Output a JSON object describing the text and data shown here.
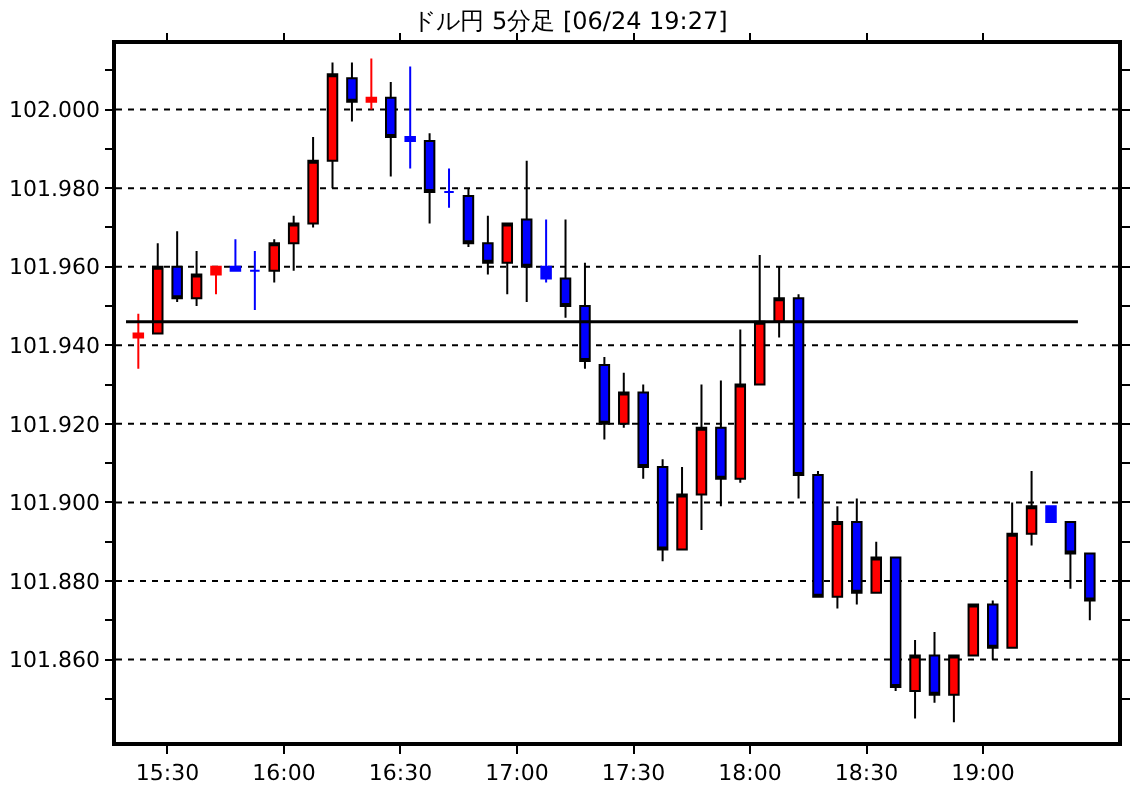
{
  "chart_data": {
    "type": "candlestick",
    "title": "ドル円 5分足 [06/24 19:27]",
    "x": [
      15.375,
      15.4583,
      15.5417,
      15.625,
      15.7083,
      15.7917,
      15.875,
      15.9583,
      16.0417,
      16.125,
      16.2083,
      16.2917,
      16.375,
      16.4583,
      16.5417,
      16.625,
      16.7083,
      16.7917,
      16.875,
      16.9583,
      17.0417,
      17.125,
      17.2083,
      17.2917,
      17.375,
      17.4583,
      17.5417,
      17.625,
      17.7083,
      17.7917,
      17.875,
      17.9583,
      18.0417,
      18.125,
      18.2083,
      18.2917,
      18.375,
      18.4583,
      18.5417,
      18.625,
      18.7083,
      18.7917,
      18.875,
      18.9583,
      19.0417,
      19.125,
      19.2083,
      19.2917,
      19.375,
      19.4583
    ],
    "ohlc": [
      [
        101.942,
        101.948,
        101.934,
        101.943
      ],
      [
        101.943,
        101.966,
        101.943,
        101.96
      ],
      [
        101.96,
        101.969,
        101.951,
        101.952
      ],
      [
        101.952,
        101.964,
        101.95,
        101.958
      ],
      [
        101.958,
        101.96,
        101.953,
        101.96
      ],
      [
        101.96,
        101.967,
        101.959,
        101.959
      ],
      [
        101.959,
        101.964,
        101.949,
        101.959
      ],
      [
        101.959,
        101.967,
        101.956,
        101.966
      ],
      [
        101.966,
        101.973,
        101.959,
        101.971
      ],
      [
        101.971,
        101.993,
        101.97,
        101.987
      ],
      [
        101.987,
        102.012,
        101.98,
        102.009
      ],
      [
        102.008,
        102.012,
        101.997,
        102.002
      ],
      [
        102.002,
        102.013,
        102.0,
        102.003
      ],
      [
        102.003,
        102.007,
        101.983,
        101.993
      ],
      [
        101.993,
        102.011,
        101.985,
        101.992
      ],
      [
        101.992,
        101.994,
        101.971,
        101.979
      ],
      [
        101.979,
        101.985,
        101.975,
        101.979
      ],
      [
        101.978,
        101.98,
        101.965,
        101.966
      ],
      [
        101.966,
        101.973,
        101.958,
        101.961
      ],
      [
        101.961,
        101.971,
        101.953,
        101.971
      ],
      [
        101.972,
        101.987,
        101.951,
        101.96
      ],
      [
        101.96,
        101.972,
        101.956,
        101.957
      ],
      [
        101.957,
        101.972,
        101.947,
        101.95
      ],
      [
        101.95,
        101.961,
        101.934,
        101.936
      ],
      [
        101.935,
        101.937,
        101.916,
        101.92
      ],
      [
        101.92,
        101.933,
        101.919,
        101.928
      ],
      [
        101.928,
        101.93,
        101.906,
        101.909
      ],
      [
        101.909,
        101.911,
        101.885,
        101.888
      ],
      [
        101.888,
        101.909,
        101.888,
        101.902
      ],
      [
        101.902,
        101.93,
        101.893,
        101.919
      ],
      [
        101.919,
        101.931,
        101.899,
        101.906
      ],
      [
        101.906,
        101.944,
        101.905,
        101.93
      ],
      [
        101.93,
        101.963,
        101.93,
        101.946
      ],
      [
        101.946,
        101.96,
        101.942,
        101.952
      ],
      [
        101.952,
        101.953,
        101.901,
        101.907
      ],
      [
        101.907,
        101.908,
        101.876,
        101.876
      ],
      [
        101.876,
        101.899,
        101.873,
        101.895
      ],
      [
        101.895,
        101.901,
        101.874,
        101.877
      ],
      [
        101.877,
        101.89,
        101.877,
        101.886
      ],
      [
        101.886,
        101.886,
        101.852,
        101.853
      ],
      [
        101.852,
        101.865,
        101.845,
        101.861
      ],
      [
        101.861,
        101.867,
        101.849,
        101.851
      ],
      [
        101.851,
        101.861,
        101.844,
        101.861
      ],
      [
        101.861,
        101.874,
        101.861,
        101.874
      ],
      [
        101.874,
        101.875,
        101.86,
        101.863
      ],
      [
        101.863,
        101.9,
        101.863,
        101.892
      ],
      [
        101.892,
        101.908,
        101.889,
        101.899
      ],
      [
        101.899,
        101.899,
        101.895,
        101.895
      ],
      [
        101.895,
        101.895,
        101.878,
        101.887
      ],
      [
        101.887,
        101.887,
        101.87,
        101.875
      ]
    ],
    "colors": [
      "#ff0000",
      "#ff0000",
      "#0000ff",
      "#ff0000",
      "#ff0000",
      "#0000ff",
      "#0000ff",
      "#ff0000",
      "#ff0000",
      "#ff0000",
      "#ff0000",
      "#0000ff",
      "#ff0000",
      "#0000ff",
      "#0000ff",
      "#0000ff",
      "#0000ff",
      "#0000ff",
      "#0000ff",
      "#ff0000",
      "#0000ff",
      "#0000ff",
      "#0000ff",
      "#0000ff",
      "#0000ff",
      "#ff0000",
      "#0000ff",
      "#0000ff",
      "#ff0000",
      "#ff0000",
      "#0000ff",
      "#ff0000",
      "#ff0000",
      "#ff0000",
      "#0000ff",
      "#0000ff",
      "#ff0000",
      "#0000ff",
      "#ff0000",
      "#0000ff",
      "#ff0000",
      "#0000ff",
      "#ff0000",
      "#ff0000",
      "#0000ff",
      "#ff0000",
      "#ff0000",
      "#0000ff",
      "#0000ff",
      "#0000ff"
    ],
    "xlim": [
      15.2792,
      19.5792
    ],
    "xticks": [
      {
        "value": 15.5,
        "label": "15:30"
      },
      {
        "value": 16,
        "label": "16:00"
      },
      {
        "value": 16.5,
        "label": "16:30"
      },
      {
        "value": 17,
        "label": "17:00"
      },
      {
        "value": 17.5,
        "label": "17:30"
      },
      {
        "value": 18,
        "label": "18:00"
      },
      {
        "value": 18.5,
        "label": "18:30"
      },
      {
        "value": 19,
        "label": "19:00"
      }
    ],
    "ylim": [
      101.839,
      102.0167
    ],
    "yticks": [
      {
        "value": 101.85,
        "label": null
      },
      {
        "value": 101.86,
        "label": "101.860"
      },
      {
        "value": 101.87,
        "label": null
      },
      {
        "value": 101.88,
        "label": "101.880"
      },
      {
        "value": 101.89,
        "label": null
      },
      {
        "value": 101.9,
        "label": "101.900"
      },
      {
        "value": 101.91,
        "label": null
      },
      {
        "value": 101.92,
        "label": "101.920"
      },
      {
        "value": 101.93,
        "label": null
      },
      {
        "value": 101.94,
        "label": "101.940"
      },
      {
        "value": 101.95,
        "label": null
      },
      {
        "value": 101.96,
        "label": "101.960"
      },
      {
        "value": 101.97,
        "label": null
      },
      {
        "value": 101.98,
        "label": "101.980"
      },
      {
        "value": 101.99,
        "label": null
      },
      {
        "value": 102.0,
        "label": "102.000"
      },
      {
        "value": 102.01,
        "label": null
      }
    ],
    "grid": "y",
    "ref_lines": [
      {
        "axis": "y",
        "value": 101.946,
        "color": "#000000"
      }
    ]
  }
}
